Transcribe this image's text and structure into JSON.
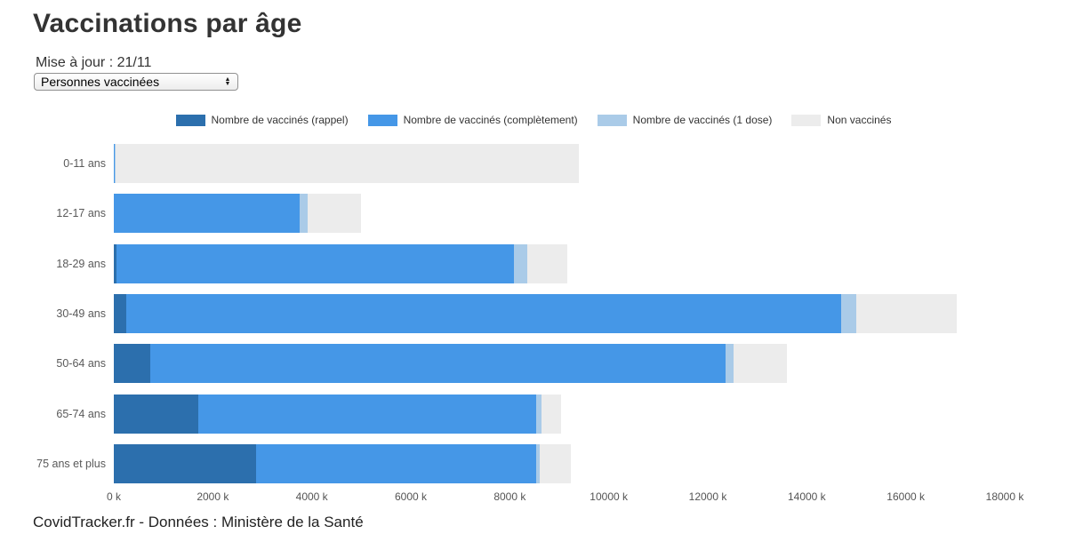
{
  "header": {
    "title": "Vaccinations par âge",
    "updated": "Mise à jour : 21/11"
  },
  "controls": {
    "metric_select": {
      "value": "Personnes vaccinées",
      "stepper_up": "▲",
      "stepper_down": "▼"
    }
  },
  "chart_data": {
    "type": "bar",
    "orientation": "horizontal",
    "stacked": true,
    "grid": false,
    "legend_position": "top",
    "unit": "k (thousands of persons)",
    "xlim": [
      0,
      18000
    ],
    "x_ticks": [
      "0 k",
      "2000 k",
      "4000 k",
      "6000 k",
      "8000 k",
      "10000 k",
      "12000 k",
      "14000 k",
      "16000 k",
      "18000 k"
    ],
    "categories": [
      "0-11 ans",
      "12-17 ans",
      "18-29 ans",
      "30-49 ans",
      "50-64 ans",
      "65-74 ans",
      "75 ans et plus"
    ],
    "series": [
      {
        "name": "Nombre de vaccinés (rappel)",
        "color": "#2c6fad",
        "values": [
          0,
          0,
          60,
          245,
          740,
          1710,
          2880
        ]
      },
      {
        "name": "Nombre de vaccinés (complètement)",
        "color": "#4597e7",
        "values": [
          25,
          3750,
          8030,
          14450,
          11620,
          6825,
          5660
        ]
      },
      {
        "name": "Nombre de vaccinés (1 dose)",
        "color": "#aacbe8",
        "values": [
          5,
          165,
          270,
          310,
          160,
          110,
          70
        ]
      },
      {
        "name": "Non vaccinés",
        "color": "#ececec",
        "values": [
          9365,
          1080,
          810,
          2025,
          1080,
          400,
          620
        ]
      }
    ],
    "totals": [
      9395,
      4995,
      9170,
      17030,
      13600,
      9045,
      9230
    ]
  },
  "footer": {
    "attribution": "CovidTracker.fr - Données : Ministère de la Santé"
  }
}
